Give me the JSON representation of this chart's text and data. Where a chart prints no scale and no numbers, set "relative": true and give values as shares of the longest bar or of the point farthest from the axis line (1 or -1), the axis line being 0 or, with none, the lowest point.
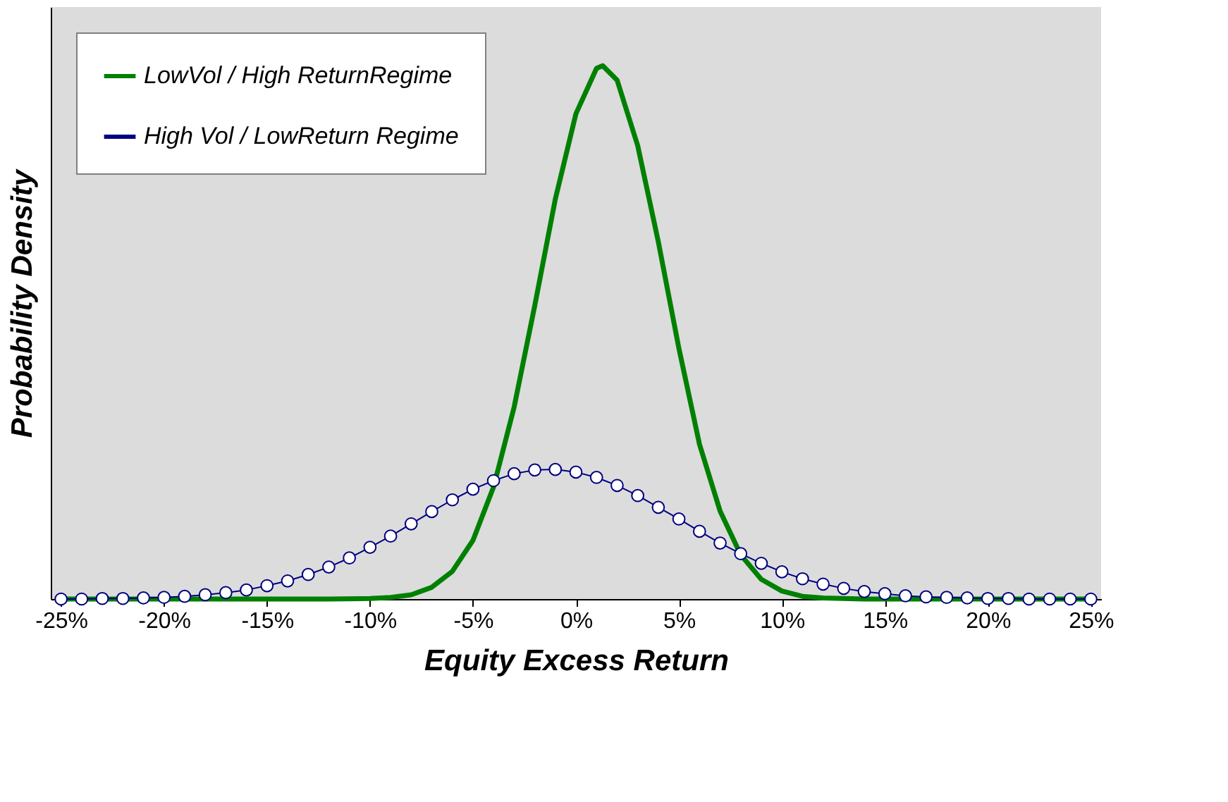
{
  "chart_data": {
    "type": "line",
    "relative": true,
    "xlabel": "Equity Excess Return",
    "ylabel": "Probability Density",
    "xlim": [
      -25.5,
      25.5
    ],
    "xticks": [
      {
        "value": -25,
        "label": "-25%"
      },
      {
        "value": -20,
        "label": "-20%"
      },
      {
        "value": -15,
        "label": "-15%"
      },
      {
        "value": -10,
        "label": "-10%"
      },
      {
        "value": -5,
        "label": "-5%"
      },
      {
        "value": 0,
        "label": "0%"
      },
      {
        "value": 5,
        "label": "5%"
      },
      {
        "value": 10,
        "label": "10%"
      },
      {
        "value": 15,
        "label": "15%"
      },
      {
        "value": 20,
        "label": "20%"
      },
      {
        "value": 25,
        "label": "25%"
      }
    ],
    "tick_labels": "x",
    "grid": false,
    "legend": "top left",
    "series": [
      {
        "name": "LowVol / High ReturnRegime",
        "color": "#008000",
        "marker": "none",
        "x": [
          -25,
          -20,
          -15,
          -12,
          -10,
          -9,
          -8,
          -7,
          -6,
          -5,
          -4,
          -3,
          -2,
          -1,
          0,
          1,
          1.3,
          2,
          3,
          4,
          5,
          6,
          7,
          8,
          9,
          10,
          11,
          12,
          13,
          14,
          15,
          20,
          25
        ],
        "values": [
          0,
          0,
          0,
          0,
          0.001,
          0.003,
          0.008,
          0.022,
          0.052,
          0.11,
          0.21,
          0.36,
          0.55,
          0.75,
          0.91,
          0.995,
          1,
          0.973,
          0.85,
          0.67,
          0.47,
          0.29,
          0.165,
          0.083,
          0.037,
          0.015,
          0.005,
          0.002,
          0.001,
          0,
          0,
          0,
          0
        ]
      },
      {
        "name": "High Vol / LowReturn Regime",
        "color": "#000080",
        "marker": "circle",
        "x": [
          -25,
          -24,
          -23,
          -22,
          -21,
          -20,
          -19,
          -18,
          -17,
          -16,
          -15,
          -14,
          -13,
          -12,
          -11,
          -10,
          -9,
          -8,
          -7,
          -6,
          -5,
          -4,
          -3,
          -2,
          -1,
          0,
          1,
          2,
          3,
          4,
          5,
          6,
          7,
          8,
          9,
          10,
          11,
          12,
          13,
          14,
          15,
          16,
          17,
          18,
          19,
          20,
          21,
          22,
          23,
          24,
          25
        ],
        "values": [
          0,
          0,
          0.001,
          0.001,
          0.002,
          0.003,
          0.005,
          0.008,
          0.012,
          0.017,
          0.025,
          0.034,
          0.046,
          0.06,
          0.077,
          0.097,
          0.118,
          0.141,
          0.164,
          0.186,
          0.206,
          0.222,
          0.235,
          0.242,
          0.243,
          0.238,
          0.228,
          0.213,
          0.194,
          0.172,
          0.15,
          0.127,
          0.105,
          0.085,
          0.067,
          0.051,
          0.038,
          0.028,
          0.02,
          0.014,
          0.01,
          0.006,
          0.004,
          0.003,
          0.002,
          0.001,
          0.001,
          0,
          0,
          0,
          0
        ]
      }
    ]
  }
}
